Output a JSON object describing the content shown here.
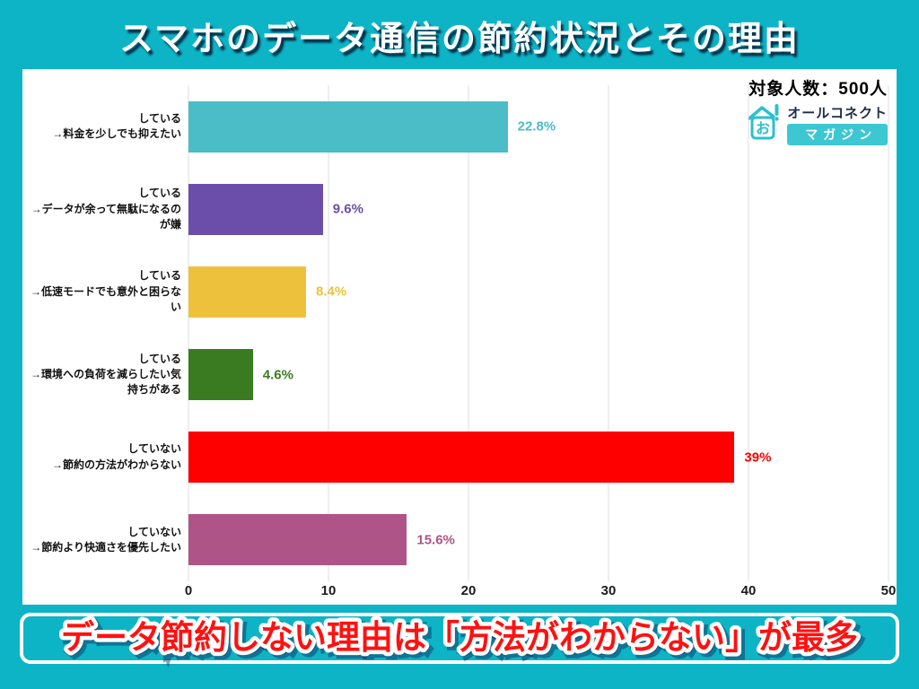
{
  "page": {
    "title": "スマホのデータ通信の節約状況とその理由",
    "sample_size": "対象人数：500人",
    "footer_banner": "データ節約しない理由は「方法がわからない」が最多"
  },
  "logo": {
    "icon": "house-brand-icon",
    "icon_glyph": "お",
    "brand_top": "オールコネクト",
    "brand_bottom": "マガジン"
  },
  "chart_data": {
    "type": "bar",
    "orientation": "horizontal",
    "title": "スマホのデータ通信の節約状況とその理由",
    "xlabel": "",
    "ylabel": "",
    "xlim": [
      0,
      50
    ],
    "x_ticks": [
      0,
      10,
      20,
      30,
      40,
      50
    ],
    "grid": true,
    "bars": [
      {
        "group": "している",
        "reason": "→料金を少しでも抑えたい",
        "value": 22.8,
        "value_label": "22.8%",
        "color": "#4ABDC6"
      },
      {
        "group": "している",
        "reason": "→データが余って無駄になるのが嫌",
        "value": 9.6,
        "value_label": "9.6%",
        "color": "#6B4EA9"
      },
      {
        "group": "している",
        "reason": "→低速モードでも意外と困らない",
        "value": 8.4,
        "value_label": "8.4%",
        "color": "#EDC13C"
      },
      {
        "group": "している",
        "reason": "→環境への負荷を減らしたい気持ちがある",
        "value": 4.6,
        "value_label": "4.6%",
        "color": "#3A7B22"
      },
      {
        "group": "していない",
        "reason": "→節約の方法がわからない",
        "value": 39,
        "value_label": "39%",
        "color": "#FF0000"
      },
      {
        "group": "していない",
        "reason": "→節約より快適さを優先したい",
        "value": 15.6,
        "value_label": "15.6%",
        "color": "#AF5486"
      }
    ]
  },
  "colors": {
    "background_teal": "#0CB4C6",
    "card_white": "#FFFFFF",
    "banner_text_red": "#FF1111",
    "grid_gray": "#DCDCDC",
    "logo_teal": "#2BC0CE",
    "logo_navy": "#1B2B4B"
  }
}
